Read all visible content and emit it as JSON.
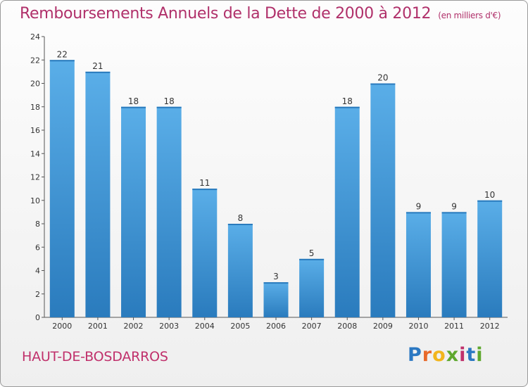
{
  "header": {
    "title": "Remboursements Annuels de la Dette de 2000 à 2012",
    "unit": "(en milliers d'€)"
  },
  "footer": {
    "commune": "HAUT-DE-BOSDARROS",
    "logo_letters": [
      "P",
      "r",
      "o",
      "x",
      "i",
      "t",
      "i"
    ],
    "logo_colors": [
      "#2b78c2",
      "#e8692a",
      "#f2b51c",
      "#5ea82e",
      "#c0306b",
      "#2b78c2",
      "#5ea82e"
    ]
  },
  "chart_data": {
    "type": "bar",
    "categories": [
      "2000",
      "2001",
      "2002",
      "2003",
      "2004",
      "2005",
      "2006",
      "2007",
      "2008",
      "2009",
      "2010",
      "2011",
      "2012"
    ],
    "values": [
      22,
      21,
      18,
      18,
      11,
      8,
      3,
      5,
      18,
      20,
      9,
      9,
      10
    ],
    "ylim": [
      0,
      24
    ],
    "yticks": [
      0,
      2,
      4,
      6,
      8,
      10,
      12,
      14,
      16,
      18,
      20,
      22,
      24
    ],
    "grid": false,
    "bar_color_top": "#5aaee8",
    "bar_color_bottom": "#2a7bbd"
  }
}
